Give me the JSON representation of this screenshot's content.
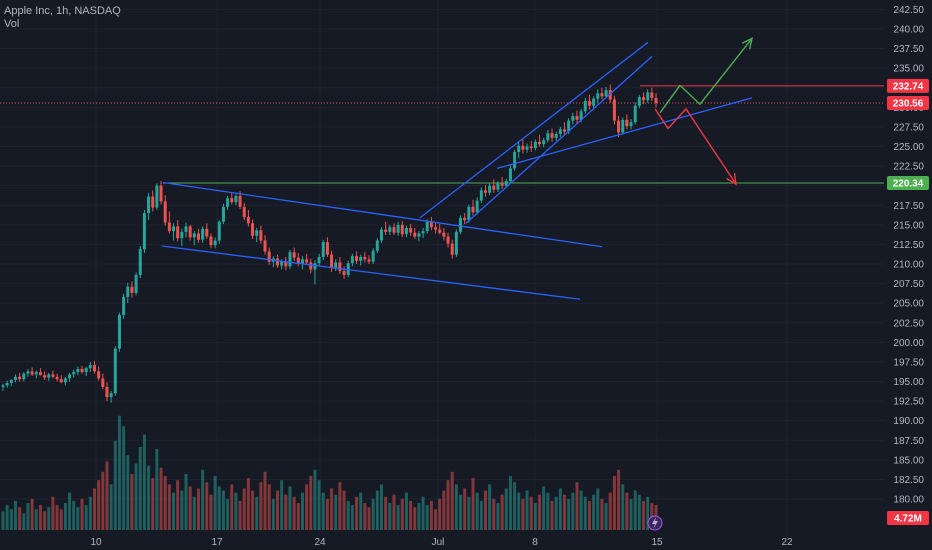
{
  "header": {
    "title": "Apple Inc, 1h, NASDAQ",
    "volume_label": "Vol"
  },
  "colors": {
    "background": "#161a25",
    "up": "#26a69a",
    "down": "#ef5350",
    "trendline": "#2962ff",
    "support": "#4caf50",
    "resistance": "#f23645",
    "text": "#b2b5be"
  },
  "chart_data": {
    "type": "candlestick",
    "symbol": "Apple Inc",
    "interval": "1h",
    "exchange": "NASDAQ",
    "y_ticks": [
      "242.50",
      "240.00",
      "237.50",
      "235.00",
      "232.50",
      "230.00",
      "227.50",
      "225.00",
      "222.50",
      "220.00",
      "217.50",
      "215.00",
      "212.50",
      "210.00",
      "207.50",
      "205.00",
      "202.50",
      "200.00",
      "197.50",
      "195.00",
      "192.50",
      "190.00",
      "187.50",
      "185.00",
      "182.50",
      "180.00"
    ],
    "x_ticks": [
      "10",
      "17",
      "24",
      "Jul",
      "8",
      "15",
      "22"
    ],
    "ylim": [
      178.5,
      243.5
    ],
    "price_tags": [
      {
        "label": "232.74",
        "price": 232.74,
        "color": "#f23645"
      },
      {
        "label": "230.56",
        "price": 230.56,
        "color": "#f23645"
      },
      {
        "label": "220.34",
        "price": 220.34,
        "color": "#4caf50"
      },
      {
        "label": "4.72M",
        "price": 179.3,
        "color": "#f23645"
      }
    ],
    "horizontal_lines": [
      {
        "name": "resistance",
        "price": 232.74,
        "from_x": 640,
        "color": "#f23645"
      },
      {
        "name": "support",
        "price": 220.34,
        "from_x": 163,
        "color": "#4caf50"
      }
    ],
    "candles": [
      [
        194.3,
        194.7,
        193.8,
        194.5
      ],
      [
        194.5,
        195.1,
        194.2,
        194.8
      ],
      [
        194.8,
        195.3,
        194.4,
        195.2
      ],
      [
        195.2,
        195.9,
        194.9,
        195.6
      ],
      [
        195.6,
        196.1,
        195.0,
        195.3
      ],
      [
        195.3,
        196.2,
        195.0,
        196.0
      ],
      [
        196.0,
        196.6,
        195.6,
        196.3
      ],
      [
        196.3,
        196.8,
        195.7,
        195.9
      ],
      [
        195.9,
        196.4,
        195.4,
        196.2
      ],
      [
        196.2,
        196.7,
        195.8,
        195.8
      ],
      [
        195.8,
        196.3,
        195.2,
        195.5
      ],
      [
        195.5,
        196.1,
        195.1,
        195.9
      ],
      [
        195.9,
        196.4,
        195.4,
        195.6
      ],
      [
        195.6,
        196.0,
        195.0,
        195.3
      ],
      [
        195.3,
        195.8,
        194.8,
        194.9
      ],
      [
        194.9,
        195.6,
        194.5,
        195.4
      ],
      [
        195.4,
        196.1,
        195.0,
        195.9
      ],
      [
        195.9,
        196.5,
        195.5,
        196.2
      ],
      [
        196.2,
        196.9,
        195.8,
        196.6
      ],
      [
        196.6,
        197.0,
        196.0,
        196.2
      ],
      [
        196.2,
        196.9,
        195.7,
        196.7
      ],
      [
        196.7,
        197.5,
        196.2,
        197.1
      ],
      [
        197.1,
        197.6,
        196.0,
        196.3
      ],
      [
        196.3,
        196.9,
        195.1,
        195.4
      ],
      [
        195.4,
        196.0,
        194.0,
        194.3
      ],
      [
        194.3,
        194.9,
        192.5,
        193.0
      ],
      [
        193.0,
        193.8,
        192.3,
        193.5
      ],
      [
        193.5,
        199.5,
        193.2,
        199.2
      ],
      [
        199.2,
        203.8,
        198.8,
        203.5
      ],
      [
        203.5,
        206.2,
        203.0,
        205.8
      ],
      [
        205.8,
        207.6,
        205.0,
        207.1
      ],
      [
        207.1,
        207.8,
        205.7,
        206.3
      ],
      [
        206.3,
        208.9,
        206.0,
        208.6
      ],
      [
        208.6,
        212.3,
        208.2,
        211.9
      ],
      [
        211.9,
        216.9,
        211.4,
        216.5
      ],
      [
        216.5,
        219.1,
        215.6,
        218.6
      ],
      [
        218.6,
        219.4,
        216.7,
        217.2
      ],
      [
        217.2,
        220.3,
        216.9,
        220.0
      ],
      [
        220.0,
        220.6,
        217.6,
        218.0
      ],
      [
        218.0,
        218.8,
        214.9,
        215.3
      ],
      [
        215.3,
        216.7,
        213.9,
        214.2
      ],
      [
        214.2,
        215.2,
        213.0,
        214.8
      ],
      [
        214.8,
        215.6,
        212.9,
        213.3
      ],
      [
        213.3,
        214.5,
        212.3,
        214.1
      ],
      [
        214.1,
        215.3,
        213.4,
        214.8
      ],
      [
        214.8,
        215.0,
        213.0,
        213.4
      ],
      [
        213.4,
        214.2,
        212.4,
        213.9
      ],
      [
        213.9,
        214.5,
        212.7,
        213.1
      ],
      [
        213.1,
        214.8,
        212.7,
        214.5
      ],
      [
        214.5,
        215.2,
        213.2,
        213.5
      ],
      [
        213.5,
        213.9,
        212.0,
        212.4
      ],
      [
        212.4,
        213.4,
        212.0,
        213.0
      ],
      [
        213.0,
        215.6,
        212.6,
        215.4
      ],
      [
        215.4,
        217.7,
        215.1,
        217.3
      ],
      [
        217.3,
        218.7,
        216.9,
        218.4
      ],
      [
        218.4,
        219.1,
        217.6,
        217.9
      ],
      [
        217.9,
        218.9,
        217.5,
        218.7
      ],
      [
        218.7,
        219.3,
        217.0,
        217.3
      ],
      [
        217.3,
        217.8,
        215.6,
        216.0
      ],
      [
        216.0,
        216.9,
        214.8,
        215.2
      ],
      [
        215.2,
        215.7,
        213.2,
        213.6
      ],
      [
        213.6,
        214.6,
        212.8,
        214.3
      ],
      [
        214.3,
        214.9,
        212.6,
        213.0
      ],
      [
        213.0,
        213.7,
        211.2,
        211.6
      ],
      [
        211.6,
        212.1,
        209.9,
        210.3
      ],
      [
        210.3,
        211.0,
        209.6,
        210.7
      ],
      [
        210.7,
        211.2,
        209.5,
        209.8
      ],
      [
        209.8,
        210.6,
        209.3,
        210.3
      ],
      [
        210.3,
        210.9,
        209.2,
        209.7
      ],
      [
        209.7,
        211.8,
        209.4,
        211.5
      ],
      [
        211.5,
        212.1,
        210.4,
        210.8
      ],
      [
        210.8,
        211.4,
        209.7,
        210.0
      ],
      [
        210.0,
        211.0,
        209.3,
        210.6
      ],
      [
        210.6,
        211.3,
        209.9,
        210.2
      ],
      [
        210.2,
        210.7,
        208.8,
        209.3
      ],
      [
        209.3,
        210.5,
        207.4,
        210.1
      ],
      [
        210.1,
        211.3,
        209.7,
        210.9
      ],
      [
        210.9,
        213.1,
        210.5,
        212.8
      ],
      [
        212.8,
        213.4,
        210.9,
        211.2
      ],
      [
        211.2,
        211.7,
        209.0,
        209.5
      ],
      [
        209.5,
        210.6,
        209.1,
        210.2
      ],
      [
        210.2,
        210.9,
        208.7,
        209.1
      ],
      [
        209.1,
        209.7,
        208.1,
        208.6
      ],
      [
        208.6,
        210.4,
        208.3,
        210.1
      ],
      [
        210.1,
        211.3,
        209.7,
        211.0
      ],
      [
        211.0,
        211.6,
        210.0,
        210.4
      ],
      [
        210.4,
        211.2,
        209.8,
        210.9
      ],
      [
        210.9,
        211.5,
        210.2,
        210.6
      ],
      [
        210.6,
        211.1,
        210.0,
        210.3
      ],
      [
        210.3,
        212.0,
        210.0,
        211.7
      ],
      [
        211.7,
        213.3,
        211.4,
        213.0
      ],
      [
        213.0,
        214.7,
        212.7,
        214.4
      ],
      [
        214.4,
        215.4,
        213.7,
        214.1
      ],
      [
        214.1,
        215.0,
        213.7,
        214.7
      ],
      [
        214.7,
        215.2,
        213.7,
        214.0
      ],
      [
        214.0,
        215.4,
        213.6,
        215.0
      ],
      [
        215.0,
        215.5,
        213.4,
        213.8
      ],
      [
        213.8,
        214.9,
        213.4,
        214.6
      ],
      [
        214.6,
        215.1,
        213.6,
        214.0
      ],
      [
        214.0,
        214.6,
        213.2,
        213.5
      ],
      [
        213.5,
        214.2,
        212.9,
        213.9
      ],
      [
        213.9,
        214.6,
        213.3,
        214.2
      ],
      [
        214.2,
        215.7,
        213.9,
        215.4
      ],
      [
        215.4,
        216.0,
        214.3,
        214.7
      ],
      [
        214.7,
        215.3,
        213.9,
        214.4
      ],
      [
        214.4,
        215.1,
        213.8,
        214.0
      ],
      [
        214.0,
        214.6,
        213.0,
        213.5
      ],
      [
        213.5,
        214.0,
        212.1,
        212.6
      ],
      [
        212.6,
        213.1,
        210.7,
        211.2
      ],
      [
        211.2,
        214.4,
        210.9,
        214.1
      ],
      [
        214.1,
        216.2,
        213.8,
        215.9
      ],
      [
        215.9,
        216.5,
        215.1,
        215.6
      ],
      [
        215.6,
        217.6,
        215.3,
        217.3
      ],
      [
        217.3,
        218.2,
        216.2,
        216.6
      ],
      [
        216.6,
        218.5,
        216.3,
        218.1
      ],
      [
        218.1,
        219.8,
        217.8,
        219.4
      ],
      [
        219.4,
        220.1,
        218.6,
        219.1
      ],
      [
        219.1,
        220.3,
        218.8,
        220.0
      ],
      [
        220.0,
        220.8,
        219.1,
        219.5
      ],
      [
        219.5,
        220.6,
        219.2,
        220.3
      ],
      [
        220.3,
        221.1,
        219.6,
        220.0
      ],
      [
        220.0,
        220.9,
        219.7,
        220.6
      ],
      [
        220.6,
        222.6,
        220.3,
        222.2
      ],
      [
        222.2,
        224.6,
        221.9,
        224.3
      ],
      [
        224.3,
        225.6,
        223.5,
        225.1
      ],
      [
        225.1,
        225.9,
        224.1,
        224.6
      ],
      [
        224.6,
        225.4,
        224.2,
        225.0
      ],
      [
        225.0,
        225.7,
        224.3,
        224.8
      ],
      [
        224.8,
        225.9,
        224.5,
        225.6
      ],
      [
        225.6,
        226.5,
        225.0,
        225.3
      ],
      [
        225.3,
        226.1,
        224.9,
        225.8
      ],
      [
        225.8,
        227.1,
        225.5,
        226.7
      ],
      [
        226.7,
        227.3,
        225.6,
        226.1
      ],
      [
        226.1,
        226.9,
        225.7,
        226.6
      ],
      [
        226.6,
        227.5,
        226.2,
        227.2
      ],
      [
        227.2,
        228.1,
        226.5,
        226.9
      ],
      [
        226.9,
        228.6,
        226.6,
        228.3
      ],
      [
        228.3,
        229.3,
        227.8,
        228.9
      ],
      [
        228.9,
        229.6,
        228.0,
        228.4
      ],
      [
        228.4,
        229.8,
        228.1,
        229.5
      ],
      [
        229.5,
        231.2,
        229.2,
        230.8
      ],
      [
        230.8,
        231.6,
        229.7,
        230.2
      ],
      [
        230.2,
        231.4,
        229.9,
        231.1
      ],
      [
        231.1,
        232.3,
        230.5,
        231.8
      ],
      [
        231.8,
        232.5,
        231.0,
        231.4
      ],
      [
        231.4,
        232.6,
        231.1,
        232.2
      ],
      [
        232.2,
        232.9,
        230.6,
        231.0
      ],
      [
        231.0,
        231.5,
        227.8,
        228.3
      ],
      [
        228.3,
        228.9,
        226.2,
        226.8
      ],
      [
        226.8,
        228.7,
        226.5,
        228.4
      ],
      [
        228.4,
        229.1,
        227.2,
        227.6
      ],
      [
        227.6,
        228.5,
        227.2,
        228.1
      ],
      [
        228.1,
        230.6,
        227.8,
        230.2
      ],
      [
        230.2,
        231.6,
        229.9,
        231.3
      ],
      [
        231.3,
        231.9,
        230.4,
        230.9
      ],
      [
        230.9,
        232.3,
        230.6,
        231.9
      ],
      [
        231.9,
        232.5,
        230.8,
        231.2
      ],
      [
        231.2,
        231.8,
        230.0,
        230.56
      ]
    ],
    "volumes": [
      0.9,
      1.2,
      1.0,
      1.4,
      1.1,
      0.8,
      1.3,
      1.5,
      1.0,
      1.2,
      0.9,
      1.1,
      1.6,
      1.2,
      1.0,
      1.3,
      1.8,
      1.4,
      1.1,
      1.5,
      1.2,
      1.6,
      2.0,
      2.4,
      2.8,
      3.3,
      2.2,
      4.3,
      5.5,
      5.0,
      3.6,
      2.7,
      3.2,
      4.0,
      4.6,
      3.1,
      2.5,
      3.9,
      3.0,
      2.6,
      2.2,
      1.8,
      2.4,
      1.9,
      2.7,
      2.1,
      1.6,
      2.0,
      2.9,
      2.3,
      1.7,
      2.6,
      2.1,
      1.9,
      1.5,
      2.2,
      1.8,
      1.4,
      2.0,
      2.5,
      1.9,
      1.6,
      2.3,
      2.8,
      2.2,
      1.5,
      1.9,
      2.4,
      1.7,
      2.1,
      1.6,
      1.3,
      1.8,
      2.2,
      2.6,
      2.9,
      2.4,
      1.8,
      1.5,
      2.0,
      1.7,
      2.3,
      1.9,
      1.4,
      1.2,
      1.6,
      1.8,
      1.3,
      1.1,
      1.5,
      1.9,
      2.2,
      1.6,
      1.3,
      1.7,
      1.2,
      1.5,
      1.8,
      1.4,
      1.1,
      1.3,
      1.6,
      1.2,
      1.4,
      1.0,
      1.5,
      1.9,
      2.4,
      2.8,
      2.2,
      1.7,
      2.0,
      1.6,
      2.5,
      1.8,
      1.4,
      1.9,
      2.2,
      1.5,
      1.3,
      1.7,
      2.0,
      2.6,
      2.3,
      1.8,
      1.5,
      1.9,
      1.6,
      1.3,
      1.7,
      2.1,
      1.8,
      1.4,
      1.6,
      2.0,
      1.7,
      1.5,
      1.8,
      2.3,
      1.9,
      1.6,
      1.4,
      1.7,
      2.0,
      1.5,
      1.3,
      1.8,
      2.6,
      2.9,
      2.2,
      1.8,
      1.5,
      1.9,
      1.7,
      1.4,
      1.6,
      1.3,
      1.2
    ],
    "volume_scale": {
      "max": 6.5,
      "bottom_y": 530,
      "height": 135
    },
    "trendlines": [
      {
        "name": "descending-channel-upper",
        "points": [
          [
            163,
            220.4
          ],
          [
            602,
            212.2
          ]
        ]
      },
      {
        "name": "descending-channel-lower",
        "points": [
          [
            162,
            212.3
          ],
          [
            580,
            205.5
          ]
        ]
      },
      {
        "name": "rising-channel-upper",
        "points": [
          [
            420,
            215.9
          ],
          [
            648,
            238.3
          ]
        ]
      },
      {
        "name": "rising-channel-lower",
        "points": [
          [
            466,
            215.2
          ],
          [
            652,
            236.5
          ]
        ]
      },
      {
        "name": "rising-support",
        "points": [
          [
            497,
            222.2
          ],
          [
            752,
            231.2
          ]
        ]
      }
    ],
    "projections": [
      {
        "name": "bullish-path",
        "color": "#4caf50",
        "points": [
          [
            660,
            229.3
          ],
          [
            680,
            232.8
          ],
          [
            700,
            230.4
          ],
          [
            752,
            238.8
          ]
        ]
      },
      {
        "name": "bearish-path",
        "color": "#f23645",
        "points": [
          [
            655,
            229.8
          ],
          [
            668,
            227.3
          ],
          [
            686,
            229.8
          ],
          [
            736,
            220.2
          ]
        ]
      }
    ]
  }
}
